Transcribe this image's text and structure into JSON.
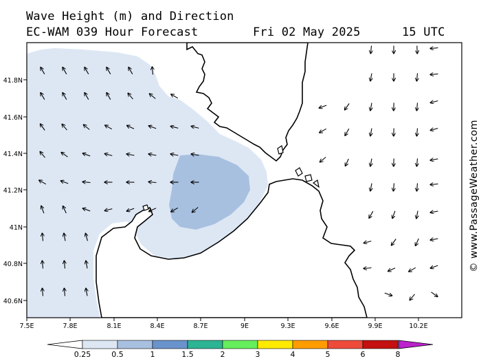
{
  "header": {
    "title": "Wave Height (m) and Direction",
    "model": "EC-WAM 039 Hour Forecast",
    "date": "Fri 02 May 2025",
    "time": "15 UTC"
  },
  "credit": "© www.PassageWeather.com",
  "axes": {
    "lat_labels": [
      "41.8N",
      "41.6N",
      "41.4N",
      "41.2N",
      "41N",
      "40.8N",
      "40.6N"
    ],
    "lon_labels": [
      "7.5E",
      "7.8E",
      "8.1E",
      "8.4E",
      "8.7E",
      "9E",
      "9.3E",
      "9.6E",
      "9.9E",
      "10.2E"
    ]
  },
  "legend": {
    "ticks": [
      "0.25",
      "0.5",
      "1",
      "1.5",
      "2",
      "3",
      "4",
      "5",
      "6",
      "8"
    ],
    "colors": [
      "#dde7f4",
      "#a8c0e0",
      "#6a93cc",
      "#2cb494",
      "#66ee5c",
      "#ffea00",
      "#ff9c00",
      "#ee4b3b",
      "#c41010",
      "#bb22cc"
    ]
  },
  "colors": {
    "sea_low": "#dde7f4",
    "sea_mid": "#a8c0e0"
  },
  "icons": {
    "arrow": "wave-direction-arrow"
  }
}
